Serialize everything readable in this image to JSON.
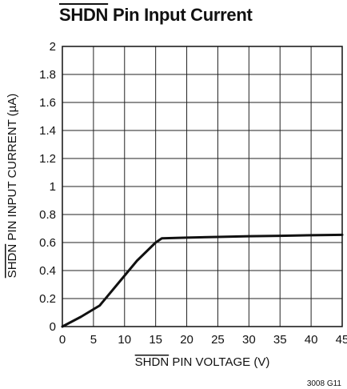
{
  "chart_data": {
    "type": "line",
    "title_overline": "SHDN",
    "title_rest": " Pin Input Current",
    "xlabel_overline": "SHDN",
    "xlabel_rest": " PIN VOLTAGE (V)",
    "ylabel_overline": "SHDN",
    "ylabel_rest": " PIN INPUT CURRENT (µA)",
    "xlim": [
      0,
      45
    ],
    "ylim": [
      0,
      2
    ],
    "x_ticks": [
      "0",
      "5",
      "10",
      "15",
      "20",
      "25",
      "30",
      "35",
      "40",
      "45"
    ],
    "y_ticks": [
      "0",
      "0.2",
      "0.4",
      "0.6",
      "0.8",
      "1",
      "1.2",
      "1.4",
      "1.6",
      "1.8",
      "2"
    ],
    "grid": true,
    "series": [
      {
        "x": [
          0,
          3,
          6,
          9,
          12,
          15,
          16,
          20,
          25,
          30,
          35,
          40,
          45
        ],
        "y": [
          0,
          0.07,
          0.15,
          0.31,
          0.47,
          0.6,
          0.63,
          0.635,
          0.64,
          0.645,
          0.648,
          0.652,
          0.655
        ]
      }
    ],
    "code": "3008 G11"
  }
}
